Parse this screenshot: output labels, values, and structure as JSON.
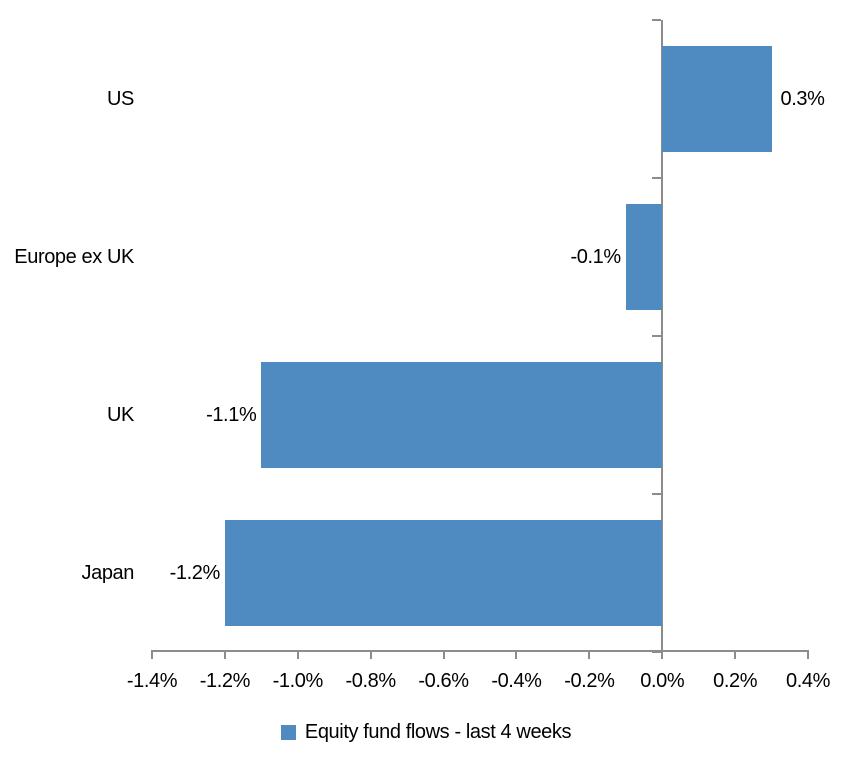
{
  "chart_data": {
    "type": "bar",
    "orientation": "horizontal",
    "title": "",
    "categories": [
      "US",
      "Europe ex UK",
      "UK",
      "Japan"
    ],
    "series": [
      {
        "name": "Equity fund flows - last 4 weeks",
        "values": [
          0.3,
          -0.1,
          -1.1,
          -1.2
        ],
        "data_labels": [
          "0.3%",
          "-0.1%",
          "-1.1%",
          "-1.2%"
        ],
        "color": "#4F8BC1"
      }
    ],
    "xlim": [
      -1.4,
      0.4
    ],
    "x_tick_step": 0.2,
    "x_tick_labels": [
      "-1.4%",
      "-1.2%",
      "-1.0%",
      "-0.8%",
      "-0.6%",
      "-0.4%",
      "-0.2%",
      "0.0%",
      "0.2%",
      "0.4%"
    ],
    "grid": "off",
    "legend_position": "bottom",
    "axis_color": "#8C8C8C",
    "text_color": "#000000",
    "background": "#FFFFFF"
  }
}
